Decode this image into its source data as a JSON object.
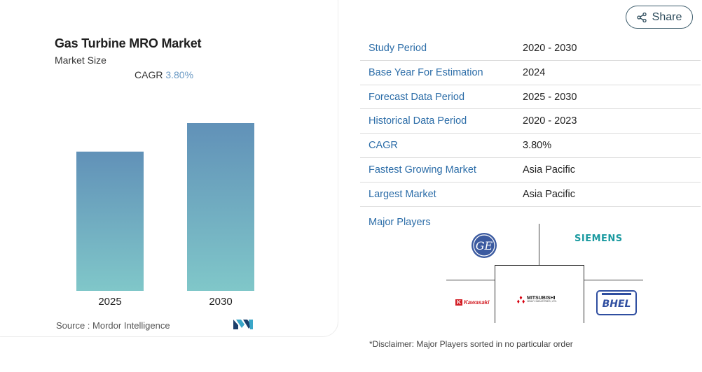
{
  "chart_panel": {
    "title": "Gas Turbine MRO Market",
    "subtitle": "Market Size",
    "cagr_label": "CAGR",
    "cagr_value": "3.80%",
    "source_label": "Source :",
    "source_value": "Mordor Intelligence",
    "logo_icon": "mordor-intelligence-logo"
  },
  "chart_data": {
    "type": "bar",
    "title": "Gas Turbine MRO Market",
    "subtitle": "Market Size",
    "categories": [
      "2025",
      "2030"
    ],
    "values": [
      0.83,
      1.0
    ],
    "ylim": [
      0,
      1.0
    ],
    "grid": false,
    "colors": {
      "top": "#6191b8",
      "bottom": "#80c7c9"
    }
  },
  "share": {
    "label": "Share",
    "icon": "share-icon"
  },
  "info_rows": [
    {
      "key": "Study Period",
      "value": "2020 - 2030"
    },
    {
      "key": "Base Year For Estimation",
      "value": "2024"
    },
    {
      "key": "Forecast Data Period",
      "value": "2025 - 2030"
    },
    {
      "key": "Historical Data Period",
      "value": "2020 - 2023"
    },
    {
      "key": "CAGR",
      "value": "3.80%"
    },
    {
      "key": "Fastest Growing Market",
      "value": "Asia Pacific"
    },
    {
      "key": "Largest Market",
      "value": "Asia Pacific"
    }
  ],
  "players": {
    "label": "Major Players",
    "logos": [
      {
        "name": "GE",
        "text": "GE"
      },
      {
        "name": "Siemens",
        "text": "SIEMENS"
      },
      {
        "name": "Kawasaki",
        "text": "Kawasaki"
      },
      {
        "name": "Mitsubishi Heavy Industries",
        "text": "MITSUBISHI",
        "subtext": "HEAVY INDUSTRIES, LTD."
      },
      {
        "name": "BHEL",
        "text": "BHEL"
      }
    ]
  },
  "disclaimer": "*Disclaimer: Major Players sorted in no particular order",
  "colors": {
    "accent_blue": "#2c6da8",
    "cagr_blue": "#6b9ac4",
    "share_border": "#3a5a6a"
  }
}
